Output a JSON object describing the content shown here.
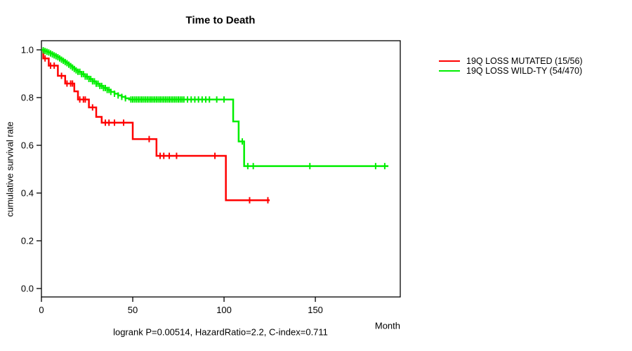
{
  "chart_data": {
    "type": "line",
    "subtype": "kaplan-meier-step-curves",
    "title": "Time to Death",
    "xlabel": "Month",
    "ylabel": "cumulative survival rate",
    "annotation": "logrank P=0.00514, HazardRatio=2.2, C-index=0.711",
    "xlim": [
      0,
      196.5
    ],
    "ylim": [
      0,
      1.0
    ],
    "grid": false,
    "legend_position": "outside-right",
    "xticks": [
      {
        "value": 0,
        "label": "0"
      },
      {
        "value": 50,
        "label": "50"
      },
      {
        "value": 100,
        "label": "100"
      },
      {
        "value": 150,
        "label": "150"
      }
    ],
    "yticks": [
      {
        "value": 0.0,
        "label": "0.0"
      },
      {
        "value": 0.2,
        "label": "0.2"
      },
      {
        "value": 0.4,
        "label": "0.4"
      },
      {
        "value": 0.6,
        "label": "0.6"
      },
      {
        "value": 0.8,
        "label": "0.8"
      },
      {
        "value": 1.0,
        "label": "1.0"
      }
    ],
    "series": [
      {
        "name": "19Q LOSS MUTATED (15/56)",
        "color": "#FF0000",
        "points": [
          [
            0,
            1.0
          ],
          [
            1,
            0.964
          ],
          [
            4,
            0.934
          ],
          [
            9,
            0.891
          ],
          [
            13,
            0.859
          ],
          [
            18,
            0.826
          ],
          [
            20,
            0.792
          ],
          [
            26,
            0.759
          ],
          [
            30,
            0.719
          ],
          [
            33,
            0.695
          ],
          [
            50,
            0.626
          ],
          [
            63,
            0.556
          ],
          [
            101,
            0.37
          ],
          [
            125,
            0.37
          ]
        ],
        "censor_ticks": [
          2,
          5,
          7,
          11,
          14,
          16,
          17,
          21,
          23,
          24,
          28,
          35,
          37,
          40,
          45,
          59,
          65,
          67,
          70,
          74,
          95,
          114,
          124
        ]
      },
      {
        "name": "19Q LOSS WILD-TY (54/470)",
        "color": "#00EE00",
        "points": [
          [
            0,
            1.0
          ],
          [
            1,
            0.998
          ],
          [
            2,
            0.995
          ],
          [
            3,
            0.992
          ],
          [
            4,
            0.989
          ],
          [
            5,
            0.985
          ],
          [
            6,
            0.981
          ],
          [
            7,
            0.977
          ],
          [
            8,
            0.973
          ],
          [
            9,
            0.969
          ],
          [
            10,
            0.964
          ],
          [
            11,
            0.959
          ],
          [
            12,
            0.954
          ],
          [
            13,
            0.949
          ],
          [
            14,
            0.944
          ],
          [
            15,
            0.938
          ],
          [
            16,
            0.932
          ],
          [
            17,
            0.926
          ],
          [
            18,
            0.92
          ],
          [
            19,
            0.914
          ],
          [
            20,
            0.908
          ],
          [
            22,
            0.898
          ],
          [
            24,
            0.888
          ],
          [
            26,
            0.878
          ],
          [
            28,
            0.868
          ],
          [
            30,
            0.858
          ],
          [
            32,
            0.849
          ],
          [
            34,
            0.84
          ],
          [
            36,
            0.832
          ],
          [
            38,
            0.824
          ],
          [
            40,
            0.816
          ],
          [
            42,
            0.809
          ],
          [
            44,
            0.803
          ],
          [
            46,
            0.797
          ],
          [
            48,
            0.792
          ],
          [
            105,
            0.7
          ],
          [
            108,
            0.616
          ],
          [
            111,
            0.513
          ],
          [
            190,
            0.513
          ]
        ],
        "censor_ticks": [
          1,
          2,
          3,
          4,
          5,
          6,
          7,
          8,
          9,
          10,
          11,
          12,
          13,
          14,
          15,
          16,
          17,
          18,
          19,
          20,
          21,
          22,
          23,
          24,
          25,
          26,
          27,
          28,
          29,
          30,
          31,
          32,
          33,
          34,
          35,
          36,
          37,
          38,
          40,
          42,
          44,
          46,
          49,
          50,
          51,
          52,
          53,
          54,
          55,
          56,
          57,
          58,
          59,
          60,
          61,
          62,
          63,
          64,
          65,
          66,
          67,
          68,
          69,
          70,
          71,
          72,
          73,
          74,
          75,
          76,
          77,
          78,
          80,
          82,
          84,
          86,
          88,
          90,
          92,
          96,
          100,
          110,
          113,
          116,
          147,
          183,
          188
        ]
      }
    ]
  }
}
